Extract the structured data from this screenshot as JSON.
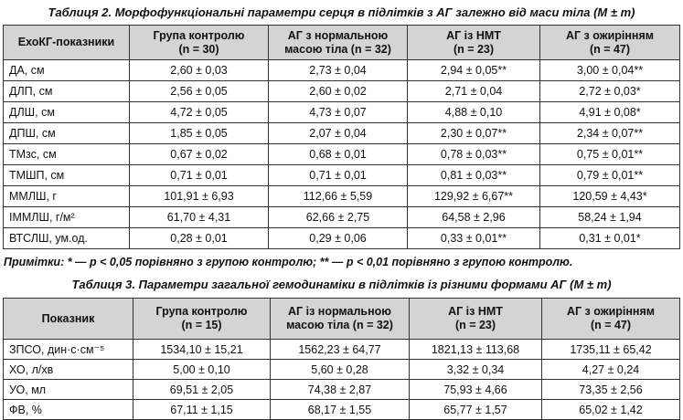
{
  "table2": {
    "title": "Таблиця 2. Морфофункціональні параметри серця в підлітків з АГ залежно від маси тіла (M ± m)",
    "headers": [
      {
        "l1": "ЕхоКГ-показники",
        "l2": ""
      },
      {
        "l1": "Група контролю",
        "l2": "(n = 30)"
      },
      {
        "l1": "АГ з нормальною",
        "l2": "масою тіла (n = 32)"
      },
      {
        "l1": "АГ із НМТ",
        "l2": "(n = 23)"
      },
      {
        "l1": "АГ з ожирінням",
        "l2": "(n = 47)"
      }
    ],
    "rows": [
      [
        "ДА, см",
        "2,60 ± 0,03",
        "2,73 ± 0,04",
        "2,94 ± 0,05**",
        "3,00 ± 0,04**"
      ],
      [
        "ДЛП, см",
        "2,56 ± 0,05",
        "2,60 ± 0,02",
        "2,71 ± 0,04",
        "2,72 ± 0,03*"
      ],
      [
        "ДЛШ, см",
        "4,72 ± 0,05",
        "4,73 ± 0,07",
        "4,88 ± 0,10",
        "4,91 ± 0,08*"
      ],
      [
        "ДПШ, см",
        "1,85 ± 0,05",
        "2,07 ± 0,04",
        "2,30 ± 0,07**",
        "2,34 ± 0,07**"
      ],
      [
        "ТМзс, см",
        "0,67 ± 0,02",
        "0,68 ± 0,01",
        "0,78 ± 0,03**",
        "0,75 ± 0,01**"
      ],
      [
        "ТМШП, см",
        "0,71 ± 0,01",
        "0,71 ± 0,01",
        "0,81 ± 0,03**",
        "0,79 ± 0,01**"
      ],
      [
        "ММЛШ, г",
        "101,91 ± 6,93",
        "112,66 ± 5,59",
        "129,92 ± 6,67**",
        "120,59 ± 4,43*"
      ],
      [
        "ІММЛШ, г/м²",
        "61,70 ± 4,31",
        "62,66 ± 2,75",
        "64,58 ± 2,96",
        "58,24 ± 1,94"
      ],
      [
        "ВТСЛШ, ум.од.",
        "0,28 ± 0,01",
        "0,29 ± 0,06",
        "0,33 ± 0,01**",
        "0,31 ± 0,01*"
      ]
    ]
  },
  "note": "Примітки: * — p < 0,05 порівняно з групою контролю; ** — p < 0,01 порівняно з групою контролю.",
  "table3": {
    "title": "Таблиця 3. Параметри загальної гемодинаміки в підлітків із різними формами АГ (M ± m)",
    "headers": [
      {
        "l1": "Показник",
        "l2": ""
      },
      {
        "l1": "Група контролю",
        "l2": "(n = 15)"
      },
      {
        "l1": "АГ із нормальною",
        "l2": "масою тіла (n = 32)"
      },
      {
        "l1": "АГ із НМТ",
        "l2": "(n = 23)"
      },
      {
        "l1": "АГ з ожирінням",
        "l2": "(n = 47)"
      }
    ],
    "rows": [
      [
        "ЗПСО, дин·с·см⁻⁵",
        "1534,10 ± 15,21",
        "1562,23 ± 64,77",
        "1821,13 ± 113,68",
        "1735,11 ± 65,42"
      ],
      [
        "ХО, л/хв",
        "5,00 ± 0,10",
        "5,60 ± 0,28",
        "3,32 ± 0,34",
        "4,27 ± 0,24"
      ],
      [
        "УО, мл",
        "69,51 ± 2,05",
        "74,38 ± 2,87",
        "75,93 ± 4,66",
        "73,35 ± 2,56"
      ],
      [
        "ФВ, %",
        "67,11 ± 1,15",
        "68,17 ± 1,55",
        "65,77 ± 1,57",
        "65,02 ± 1,42"
      ]
    ]
  }
}
